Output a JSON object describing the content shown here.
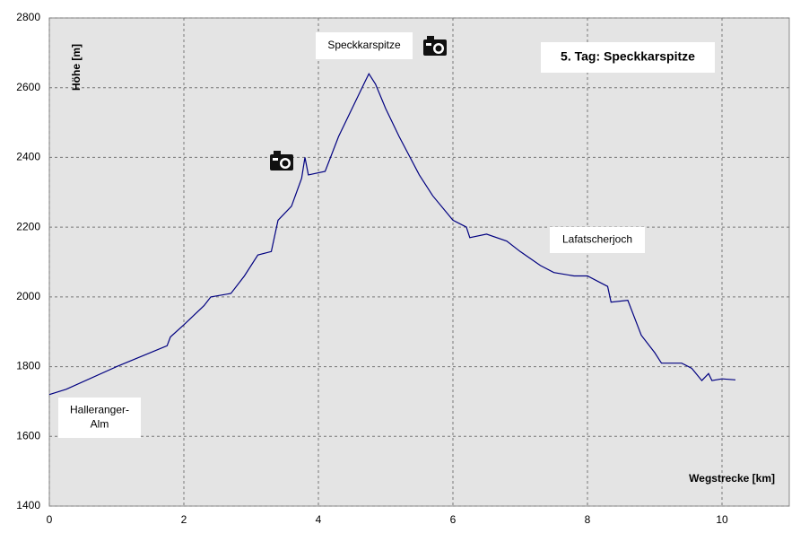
{
  "chart_data": {
    "type": "line",
    "title": "5. Tag: Speckkarspitze",
    "x_label": "Wegstrecke [km]",
    "y_label": "Höhe [m]",
    "x": [
      0,
      0.25,
      1.0,
      1.75,
      1.8,
      2.0,
      2.3,
      2.4,
      2.7,
      2.9,
      3.1,
      3.3,
      3.4,
      3.6,
      3.75,
      3.8,
      3.85,
      4.1,
      4.3,
      4.5,
      4.7,
      4.75,
      4.85,
      5.0,
      5.2,
      5.5,
      5.7,
      6.0,
      6.2,
      6.25,
      6.5,
      6.8,
      7.0,
      7.3,
      7.5,
      7.8,
      8.0,
      8.2,
      8.3,
      8.35,
      8.6,
      8.8,
      9.0,
      9.1,
      9.4,
      9.55,
      9.7,
      9.8,
      9.85,
      10.0,
      10.2
    ],
    "series": [
      {
        "name": "Höhe",
        "color": "#000080",
        "values": [
          1720,
          1735,
          1800,
          1860,
          1885,
          1920,
          1975,
          2000,
          2010,
          2060,
          2120,
          2130,
          2220,
          2260,
          2340,
          2400,
          2350,
          2360,
          2460,
          2540,
          2620,
          2640,
          2610,
          2540,
          2460,
          2350,
          2290,
          2220,
          2200,
          2170,
          2180,
          2160,
          2130,
          2090,
          2070,
          2060,
          2060,
          2040,
          2030,
          1985,
          1990,
          1890,
          1840,
          1810,
          1810,
          1795,
          1760,
          1780,
          1760,
          1765,
          1762
        ]
      }
    ],
    "annotations": [
      {
        "lines": [
          "Halleranger-",
          "Alm"
        ]
      },
      {
        "lines": [
          "Speckkarspitze"
        ]
      },
      {
        "lines": [
          "Lafatscherjoch"
        ]
      }
    ],
    "xlim": [
      0,
      11
    ],
    "xticks": [
      0,
      2,
      4,
      6,
      8,
      10
    ],
    "ylim": [
      1400,
      2800
    ],
    "yticks": [
      1400,
      1600,
      1800,
      2000,
      2200,
      2400,
      2600,
      2800
    ],
    "grid": true
  }
}
